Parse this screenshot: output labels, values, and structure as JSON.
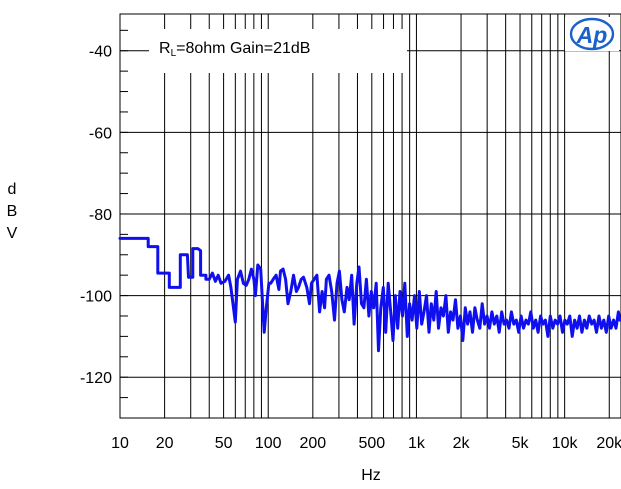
{
  "chart_data": {
    "type": "line",
    "title": "",
    "xlabel": "Hz",
    "ylabel": "dBV",
    "x_scale": "log",
    "xlim": [
      10,
      24000
    ],
    "ylim": [
      -130,
      -31
    ],
    "grid": true,
    "x_ticks": [
      {
        "value": 10,
        "label": "10"
      },
      {
        "value": 20,
        "label": "20"
      },
      {
        "value": 50,
        "label": "50"
      },
      {
        "value": 100,
        "label": "100"
      },
      {
        "value": 200,
        "label": "200"
      },
      {
        "value": 500,
        "label": "500"
      },
      {
        "value": 1000,
        "label": "1k"
      },
      {
        "value": 2000,
        "label": "2k"
      },
      {
        "value": 5000,
        "label": "5k"
      },
      {
        "value": 10000,
        "label": "10k"
      },
      {
        "value": 20000,
        "label": "20k"
      }
    ],
    "y_ticks": [
      {
        "value": -40,
        "label": "-40"
      },
      {
        "value": -60,
        "label": "-60"
      },
      {
        "value": -80,
        "label": "-80"
      },
      {
        "value": -100,
        "label": "-100"
      },
      {
        "value": -120,
        "label": "-120"
      }
    ],
    "annotation": {
      "prefix": "R",
      "subscript": "L",
      "text": "=8ohm Gain=21dB"
    },
    "logo": "Ap",
    "series": [
      {
        "color": "#1010ee",
        "points": [
          [
            10,
            -86
          ],
          [
            12,
            -86
          ],
          [
            14,
            -86
          ],
          [
            15.5,
            -86
          ],
          [
            15.5,
            -88
          ],
          [
            16.5,
            -88
          ],
          [
            18,
            -88
          ],
          [
            18,
            -94.5
          ],
          [
            21.5,
            -94.5
          ],
          [
            21.5,
            -98
          ],
          [
            23.5,
            -98
          ],
          [
            25.5,
            -98
          ],
          [
            25.5,
            -90
          ],
          [
            28.5,
            -90
          ],
          [
            29,
            -95.5
          ],
          [
            31,
            -95.5
          ],
          [
            31,
            -88.5
          ],
          [
            33.5,
            -88.5
          ],
          [
            35,
            -89
          ],
          [
            35,
            -95
          ],
          [
            38,
            -95
          ],
          [
            38,
            -96
          ],
          [
            40,
            -96
          ],
          [
            42,
            -94.5
          ],
          [
            44,
            -96.5
          ],
          [
            46,
            -95
          ],
          [
            48,
            -97
          ],
          [
            51,
            -96.5
          ],
          [
            54,
            -95
          ],
          [
            56,
            -98
          ],
          [
            60,
            -106.5
          ],
          [
            62,
            -96
          ],
          [
            65,
            -94
          ],
          [
            68,
            -97
          ],
          [
            71,
            -97.5
          ],
          [
            74,
            -96
          ],
          [
            77,
            -93.5
          ],
          [
            80,
            -96
          ],
          [
            82,
            -100
          ],
          [
            85,
            -92.5
          ],
          [
            89,
            -93.5
          ],
          [
            92,
            -103
          ],
          [
            94,
            -109
          ],
          [
            97,
            -103
          ],
          [
            101,
            -97
          ],
          [
            104,
            -97
          ],
          [
            108,
            -96
          ],
          [
            113,
            -95
          ],
          [
            118,
            -98.5
          ],
          [
            121,
            -94
          ],
          [
            126,
            -93.5
          ],
          [
            131,
            -96
          ],
          [
            136,
            -102
          ],
          [
            142,
            -99
          ],
          [
            148,
            -95
          ],
          [
            155,
            -99
          ],
          [
            160,
            -98
          ],
          [
            167,
            -96
          ],
          [
            173,
            -95.5
          ],
          [
            182,
            -98
          ],
          [
            190,
            -102
          ],
          [
            196,
            -97
          ],
          [
            204,
            -96
          ],
          [
            213,
            -95
          ],
          [
            222,
            -104
          ],
          [
            231,
            -99
          ],
          [
            240,
            -103
          ],
          [
            247,
            -96
          ],
          [
            257,
            -95
          ],
          [
            268,
            -99
          ],
          [
            280,
            -106
          ],
          [
            291,
            -97
          ],
          [
            302,
            -94
          ],
          [
            314,
            -101
          ],
          [
            326,
            -104
          ],
          [
            340,
            -98
          ],
          [
            352,
            -101
          ],
          [
            366,
            -95
          ],
          [
            380,
            -107
          ],
          [
            396,
            -97
          ],
          [
            410,
            -93
          ],
          [
            426,
            -102
          ],
          [
            442,
            -103
          ],
          [
            460,
            -96
          ],
          [
            478,
            -105
          ],
          [
            496,
            -99
          ],
          [
            515,
            -103
          ],
          [
            535,
            -97
          ],
          [
            555,
            -113.5
          ],
          [
            575,
            -103
          ],
          [
            598,
            -98
          ],
          [
            620,
            -109
          ],
          [
            645,
            -97
          ],
          [
            670,
            -104
          ],
          [
            695,
            -111
          ],
          [
            720,
            -100
          ],
          [
            748,
            -108
          ],
          [
            775,
            -99
          ],
          [
            805,
            -105
          ],
          [
            835,
            -97
          ],
          [
            868,
            -110
          ],
          [
            900,
            -102
          ],
          [
            935,
            -106
          ],
          [
            970,
            -100
          ],
          [
            1005,
            -108
          ],
          [
            1045,
            -99
          ],
          [
            1085,
            -107
          ],
          [
            1125,
            -104
          ],
          [
            1170,
            -100
          ],
          [
            1215,
            -109
          ],
          [
            1260,
            -102
          ],
          [
            1310,
            -106
          ],
          [
            1360,
            -99
          ],
          [
            1410,
            -108
          ],
          [
            1465,
            -103
          ],
          [
            1520,
            -105
          ],
          [
            1580,
            -100
          ],
          [
            1640,
            -109
          ],
          [
            1700,
            -104
          ],
          [
            1765,
            -106
          ],
          [
            1835,
            -101
          ],
          [
            1905,
            -108
          ],
          [
            1980,
            -105
          ],
          [
            2055,
            -111
          ],
          [
            2135,
            -103
          ],
          [
            2215,
            -107
          ],
          [
            2300,
            -104
          ],
          [
            2390,
            -109
          ],
          [
            2480,
            -103
          ],
          [
            2575,
            -106
          ],
          [
            2675,
            -108
          ],
          [
            2780,
            -102
          ],
          [
            2885,
            -107
          ],
          [
            2995,
            -105
          ],
          [
            3110,
            -108
          ],
          [
            3230,
            -104
          ],
          [
            3355,
            -107
          ],
          [
            3485,
            -105
          ],
          [
            3620,
            -109
          ],
          [
            3760,
            -104
          ],
          [
            3905,
            -107
          ],
          [
            4055,
            -106
          ],
          [
            4210,
            -108
          ],
          [
            4370,
            -104
          ],
          [
            4540,
            -107
          ],
          [
            4715,
            -106
          ],
          [
            4895,
            -109
          ],
          [
            5085,
            -105
          ],
          [
            5280,
            -108
          ],
          [
            5485,
            -106
          ],
          [
            5695,
            -107
          ],
          [
            5915,
            -104
          ],
          [
            6145,
            -108
          ],
          [
            6380,
            -106
          ],
          [
            6625,
            -109
          ],
          [
            6880,
            -105
          ],
          [
            7145,
            -107
          ],
          [
            7420,
            -106
          ],
          [
            7710,
            -110
          ],
          [
            8005,
            -105
          ],
          [
            8315,
            -108
          ],
          [
            8635,
            -106
          ],
          [
            8965,
            -107
          ],
          [
            9310,
            -105
          ],
          [
            9670,
            -109
          ],
          [
            10040,
            -106
          ],
          [
            10425,
            -107
          ],
          [
            10830,
            -105
          ],
          [
            11245,
            -110
          ],
          [
            11680,
            -106
          ],
          [
            12130,
            -108
          ],
          [
            12595,
            -105
          ],
          [
            13080,
            -109
          ],
          [
            13585,
            -106
          ],
          [
            14110,
            -108
          ],
          [
            14650,
            -105
          ],
          [
            15215,
            -107
          ],
          [
            15800,
            -106
          ],
          [
            16410,
            -109
          ],
          [
            17040,
            -105
          ],
          [
            17700,
            -108
          ],
          [
            18380,
            -106
          ],
          [
            19090,
            -109
          ],
          [
            19825,
            -105
          ],
          [
            20590,
            -108
          ],
          [
            21380,
            -106
          ],
          [
            22200,
            -108
          ],
          [
            23050,
            -104
          ],
          [
            23600,
            -106
          ]
        ]
      }
    ]
  }
}
